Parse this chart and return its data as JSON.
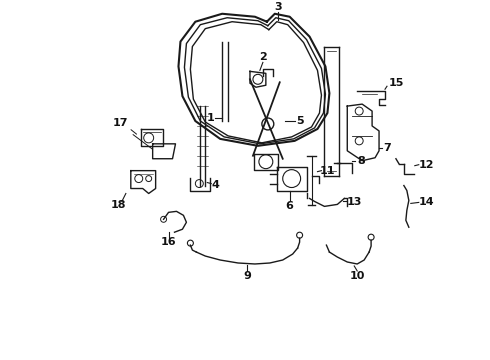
{
  "background_color": "#ffffff",
  "line_color": "#1a1a1a",
  "label_color": "#111111",
  "figsize": [
    4.9,
    3.6
  ],
  "dpi": 100,
  "label_fontsize": 8,
  "line_width": 1.0
}
